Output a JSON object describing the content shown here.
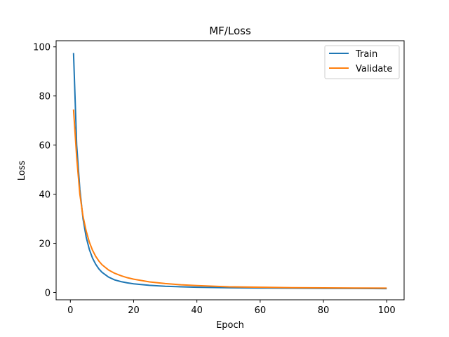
{
  "chart_data": {
    "type": "line",
    "title": "MF/Loss",
    "xlabel": "Epoch",
    "ylabel": "Loss",
    "xlim": [
      -4.5,
      105.5
    ],
    "ylim": [
      -3,
      102.5
    ],
    "xticks": [
      0,
      20,
      40,
      60,
      80,
      100
    ],
    "yticks": [
      0,
      20,
      40,
      60,
      80,
      100
    ],
    "grid": false,
    "legend_position": "top-right",
    "series": [
      {
        "name": "Train",
        "color": "#1f77b4",
        "x": [
          1,
          2,
          3,
          4,
          5,
          6,
          7,
          8,
          9,
          10,
          12,
          14,
          16,
          18,
          20,
          25,
          30,
          35,
          40,
          50,
          60,
          70,
          80,
          90,
          100
        ],
        "values": [
          97.5,
          60,
          42,
          30,
          22.5,
          17.5,
          14,
          11.5,
          9.6,
          8.2,
          6.3,
          5.1,
          4.4,
          3.9,
          3.5,
          2.9,
          2.5,
          2.3,
          2.1,
          1.9,
          1.8,
          1.7,
          1.65,
          1.6,
          1.55
        ]
      },
      {
        "name": "Validate",
        "color": "#ff7f0e",
        "x": [
          1,
          2,
          3,
          4,
          5,
          6,
          7,
          8,
          9,
          10,
          12,
          14,
          16,
          18,
          20,
          25,
          30,
          35,
          40,
          50,
          60,
          70,
          80,
          90,
          100
        ],
        "values": [
          74.5,
          55,
          40,
          31,
          25,
          20.5,
          17.2,
          14.7,
          12.8,
          11.3,
          9.2,
          7.8,
          6.8,
          6.0,
          5.4,
          4.3,
          3.6,
          3.1,
          2.8,
          2.3,
          2.1,
          1.95,
          1.85,
          1.8,
          1.75
        ]
      }
    ]
  }
}
